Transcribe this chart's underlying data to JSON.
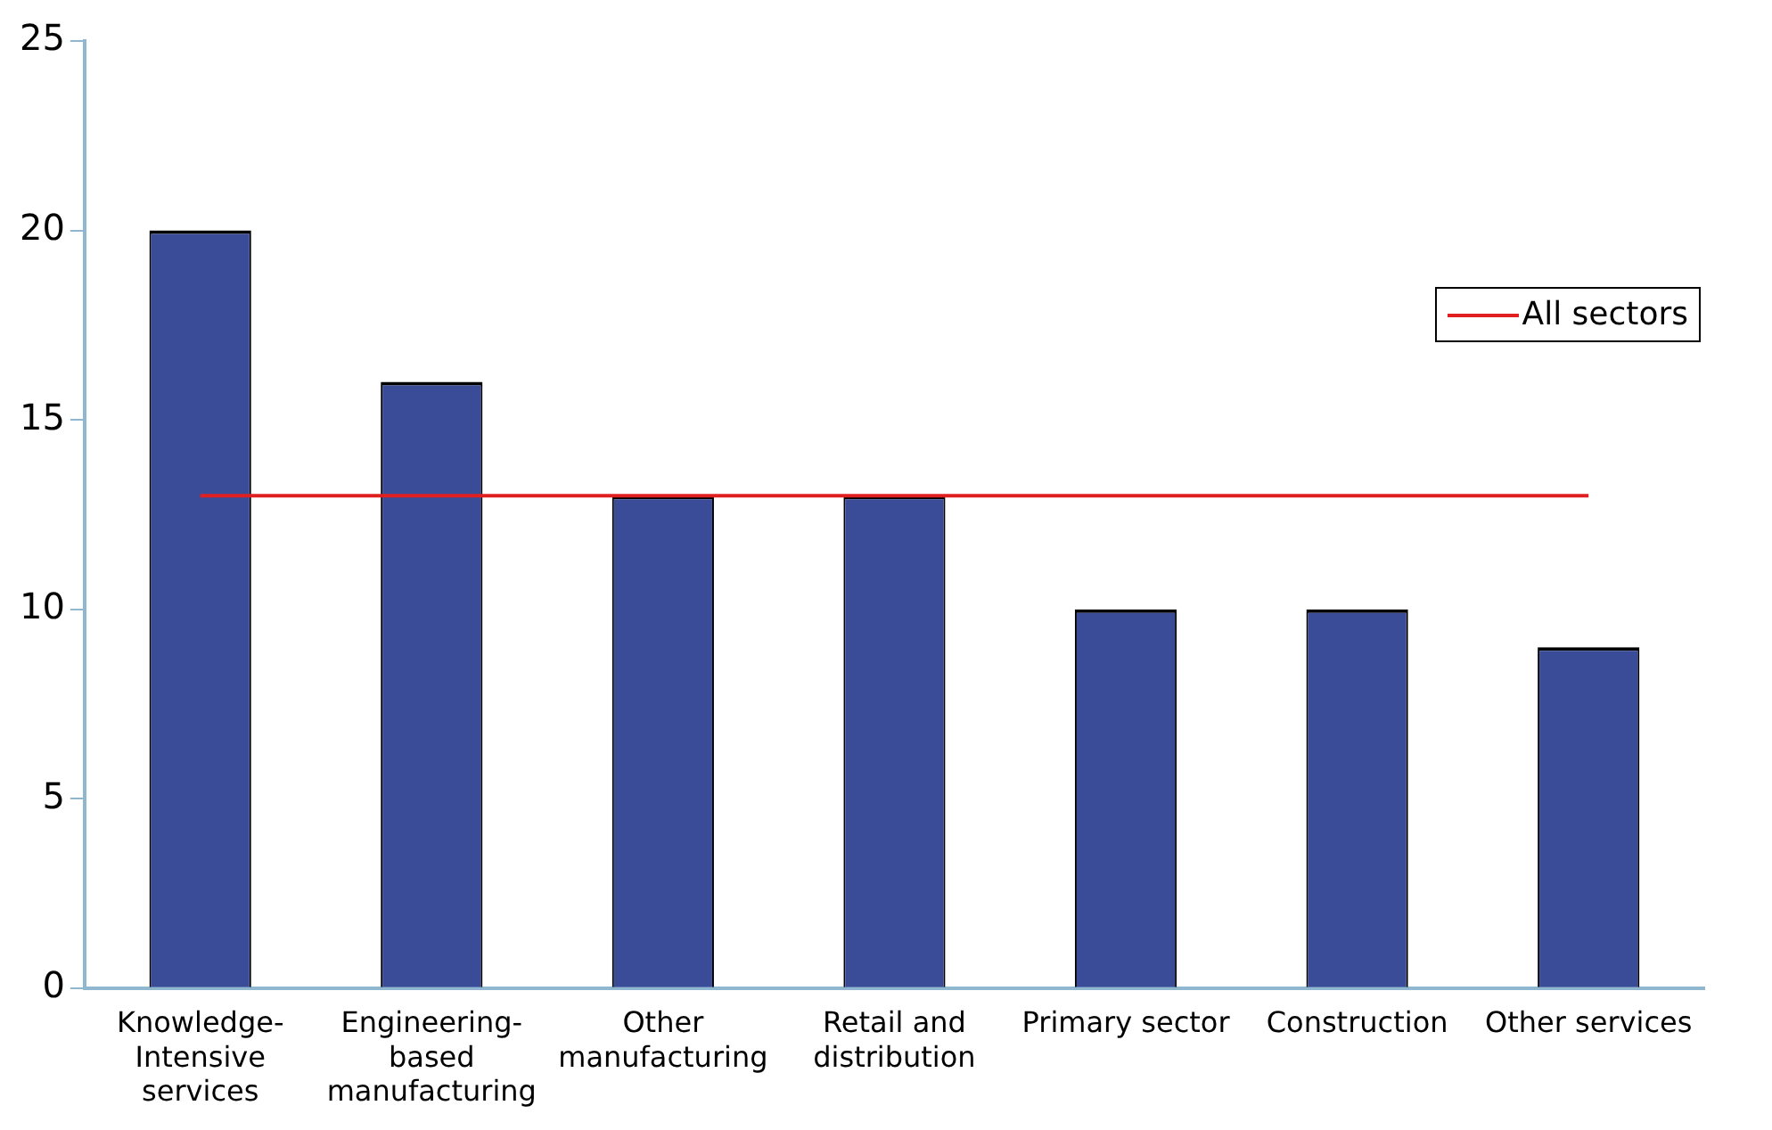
{
  "chart_data": {
    "type": "bar",
    "categories": [
      "Knowledge-Intensive services",
      "Engineering-based manufacturing",
      "Other manufacturing",
      "Retail and distribution",
      "Primary sector",
      "Construction",
      "Other services"
    ],
    "series": [
      {
        "color": "#3a4c98",
        "values": [
          20,
          16,
          13,
          13,
          10,
          10,
          9
        ]
      },
      {
        "type": "line",
        "name": "All sectors",
        "color": "#e02020",
        "values": [
          13,
          13,
          13,
          13,
          13,
          13,
          13
        ]
      }
    ],
    "ylim": [
      0,
      25
    ],
    "yticks": [
      0,
      5,
      10,
      15,
      20,
      25
    ],
    "grid": false,
    "legend": "top right",
    "marker": "none"
  }
}
